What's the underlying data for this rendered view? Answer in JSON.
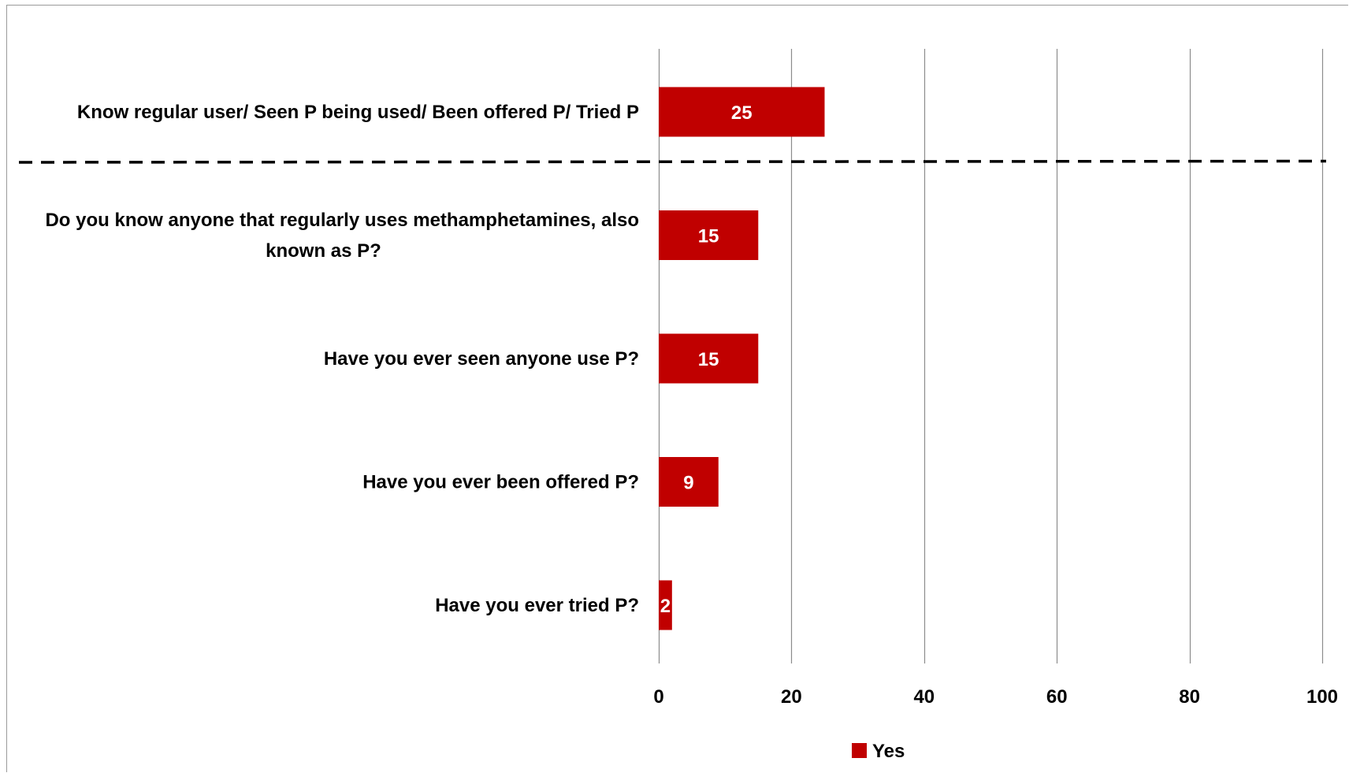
{
  "chart_data": {
    "type": "bar",
    "orientation": "horizontal",
    "categories": [
      "Know regular user/ Seen P being used/ Been offered P/ Tried P",
      "Do you know anyone that regularly uses methamphetamines, also known as P?",
      "Have you ever seen anyone use P?",
      "Have you ever been offered P?",
      "Have you ever tried P?"
    ],
    "category_lines": [
      [
        "Know regular user/ Seen P being used/ Been offered P/ Tried P"
      ],
      [
        "Do you know anyone that regularly uses methamphetamines, also",
        "known as P?"
      ],
      [
        "Have you ever seen anyone use P?"
      ],
      [
        "Have you ever been offered P?"
      ],
      [
        "Have you ever tried P?"
      ]
    ],
    "series": [
      {
        "name": "Yes",
        "color": "#c00000",
        "values": [
          25,
          15,
          15,
          9,
          2
        ]
      }
    ],
    "xlim": [
      0,
      100
    ],
    "xticks": [
      0,
      20,
      40,
      60,
      80,
      100
    ],
    "xtick_labels": [
      "0",
      "20",
      "40",
      "60",
      "80",
      "100"
    ],
    "grid": true,
    "divider_after_category": 0,
    "divider_style": "dashed",
    "legend_position": "bottom-center",
    "title": "",
    "xlabel": "",
    "ylabel": ""
  }
}
